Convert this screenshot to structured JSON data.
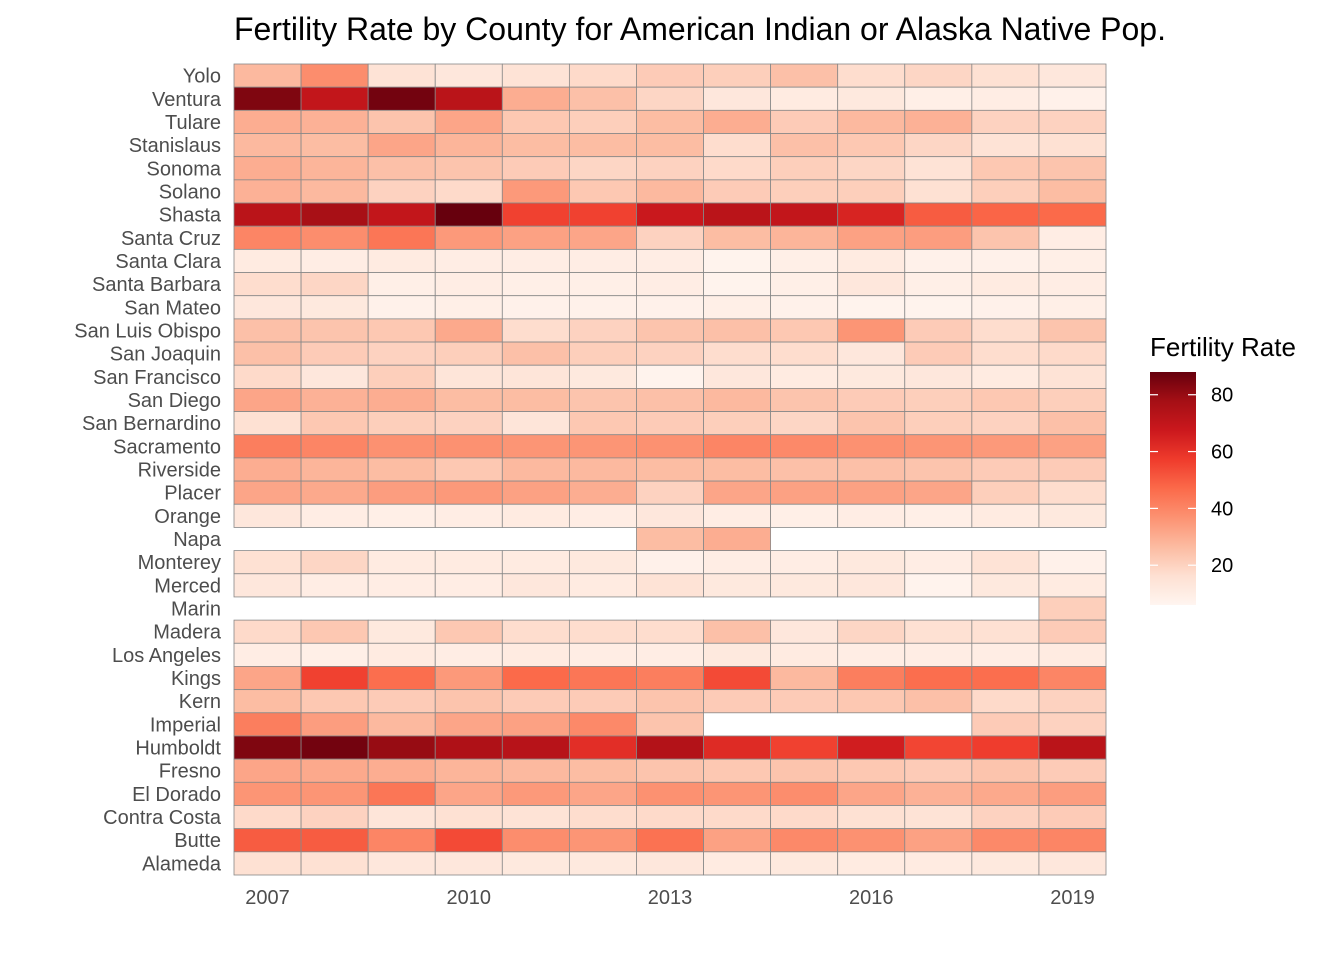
{
  "chart_data": {
    "type": "heatmap",
    "title": "Fertility Rate by County for American Indian or Alaska Native Pop.",
    "xlabel": "",
    "ylabel": "",
    "x": [
      2007,
      2008,
      2009,
      2010,
      2011,
      2012,
      2013,
      2014,
      2015,
      2016,
      2017,
      2018,
      2019
    ],
    "x_tick_labels": [
      "2007",
      "2010",
      "2013",
      "2016",
      "2019"
    ],
    "x_tick_values": [
      2007,
      2010,
      2013,
      2016,
      2019
    ],
    "counties": [
      "Yolo",
      "Ventura",
      "Tulare",
      "Stanislaus",
      "Sonoma",
      "Solano",
      "Shasta",
      "Santa Cruz",
      "Santa Clara",
      "Santa Barbara",
      "San Mateo",
      "San Luis Obispo",
      "San Joaquin",
      "San Francisco",
      "San Diego",
      "San Bernardino",
      "Sacramento",
      "Riverside",
      "Placer",
      "Orange",
      "Napa",
      "Monterey",
      "Merced",
      "Marin",
      "Madera",
      "Los Angeles",
      "Kings",
      "Kern",
      "Imperial",
      "Humboldt",
      "Fresno",
      "El Dorado",
      "Contra Costa",
      "Butte",
      "Alameda"
    ],
    "values": [
      [
        27,
        38,
        15,
        13,
        15,
        18,
        22,
        21,
        25,
        17,
        19,
        16,
        13
      ],
      [
        84,
        70,
        86,
        72,
        30,
        25,
        19,
        13,
        11,
        12,
        9,
        10,
        8
      ],
      [
        30,
        29,
        24,
        32,
        23,
        21,
        26,
        30,
        22,
        27,
        29,
        20,
        20
      ],
      [
        27,
        26,
        32,
        28,
        26,
        26,
        26,
        17,
        25,
        23,
        19,
        15,
        16
      ],
      [
        30,
        28,
        25,
        24,
        22,
        19,
        20,
        18,
        21,
        19,
        15,
        23,
        24
      ],
      [
        29,
        27,
        20,
        18,
        35,
        23,
        27,
        22,
        21,
        21,
        16,
        21,
        26
      ],
      [
        72,
        77,
        70,
        88,
        56,
        56,
        68,
        72,
        70,
        64,
        50,
        48,
        47
      ],
      [
        40,
        38,
        44,
        35,
        33,
        32,
        20,
        26,
        28,
        33,
        34,
        24,
        10
      ],
      [
        11,
        10,
        11,
        10,
        10,
        10,
        10,
        7,
        9,
        11,
        8,
        8,
        9
      ],
      [
        17,
        19,
        9,
        10,
        9,
        9,
        10,
        7,
        9,
        13,
        9,
        11,
        10
      ],
      [
        13,
        12,
        8,
        9,
        8,
        8,
        8,
        9,
        8,
        7,
        7,
        8,
        9
      ],
      [
        25,
        24,
        23,
        31,
        17,
        20,
        24,
        25,
        23,
        36,
        22,
        17,
        24
      ],
      [
        25,
        22,
        20,
        21,
        25,
        21,
        20,
        17,
        17,
        13,
        22,
        17,
        18
      ],
      [
        18,
        13,
        21,
        14,
        14,
        12,
        7,
        13,
        11,
        12,
        13,
        11,
        15
      ],
      [
        32,
        29,
        30,
        26,
        26,
        24,
        25,
        27,
        24,
        22,
        21,
        23,
        21
      ],
      [
        16,
        23,
        21,
        20,
        14,
        23,
        22,
        21,
        19,
        24,
        21,
        20,
        25
      ],
      [
        42,
        40,
        37,
        37,
        36,
        36,
        37,
        40,
        39,
        37,
        36,
        35,
        33
      ],
      [
        30,
        28,
        26,
        23,
        27,
        27,
        26,
        26,
        25,
        25,
        24,
        22,
        22
      ],
      [
        32,
        31,
        34,
        35,
        33,
        30,
        20,
        32,
        33,
        33,
        32,
        21,
        17
      ],
      [
        13,
        10,
        9,
        10,
        11,
        10,
        13,
        10,
        9,
        10,
        9,
        11,
        12
      ],
      [
        null,
        null,
        null,
        null,
        null,
        null,
        26,
        30,
        null,
        null,
        null,
        null,
        null
      ],
      [
        16,
        19,
        11,
        11,
        11,
        12,
        8,
        10,
        10,
        12,
        10,
        15,
        8
      ],
      [
        13,
        10,
        10,
        10,
        13,
        11,
        15,
        12,
        12,
        13,
        7,
        12,
        11
      ],
      [
        null,
        null,
        null,
        null,
        null,
        null,
        null,
        null,
        null,
        null,
        null,
        null,
        21
      ],
      [
        18,
        23,
        12,
        23,
        17,
        17,
        17,
        25,
        13,
        19,
        16,
        16,
        22
      ],
      [
        10,
        9,
        11,
        10,
        11,
        10,
        10,
        12,
        11,
        10,
        10,
        10,
        11
      ],
      [
        32,
        56,
        46,
        35,
        47,
        44,
        42,
        54,
        27,
        42,
        46,
        46,
        40
      ],
      [
        26,
        23,
        22,
        24,
        22,
        22,
        24,
        22,
        22,
        23,
        25,
        18,
        20
      ],
      [
        42,
        34,
        27,
        32,
        33,
        39,
        24,
        null,
        null,
        null,
        null,
        22,
        20
      ],
      [
        84,
        86,
        80,
        75,
        73,
        61,
        74,
        62,
        56,
        66,
        55,
        57,
        72
      ],
      [
        32,
        31,
        30,
        28,
        27,
        26,
        24,
        23,
        24,
        23,
        22,
        24,
        22
      ],
      [
        36,
        36,
        44,
        32,
        35,
        32,
        37,
        36,
        38,
        32,
        29,
        31,
        34
      ],
      [
        18,
        20,
        14,
        16,
        15,
        17,
        18,
        18,
        18,
        16,
        15,
        20,
        22
      ],
      [
        50,
        50,
        40,
        54,
        38,
        36,
        45,
        33,
        39,
        37,
        33,
        39,
        40
      ],
      [
        16,
        16,
        13,
        13,
        12,
        12,
        13,
        11,
        12,
        11,
        11,
        12,
        13
      ]
    ],
    "legend": {
      "title": "Fertility Rate",
      "position": "right",
      "ticks": [
        20,
        40,
        60,
        80
      ],
      "range": [
        6,
        88
      ]
    },
    "colors": [
      "#fff5f0",
      "#fee0d2",
      "#fcbba1",
      "#fc9272",
      "#fb6a4a",
      "#ef3b2c",
      "#cb181d",
      "#a50f15",
      "#67000d"
    ],
    "cell_border_color": "#888888",
    "grid": false
  }
}
